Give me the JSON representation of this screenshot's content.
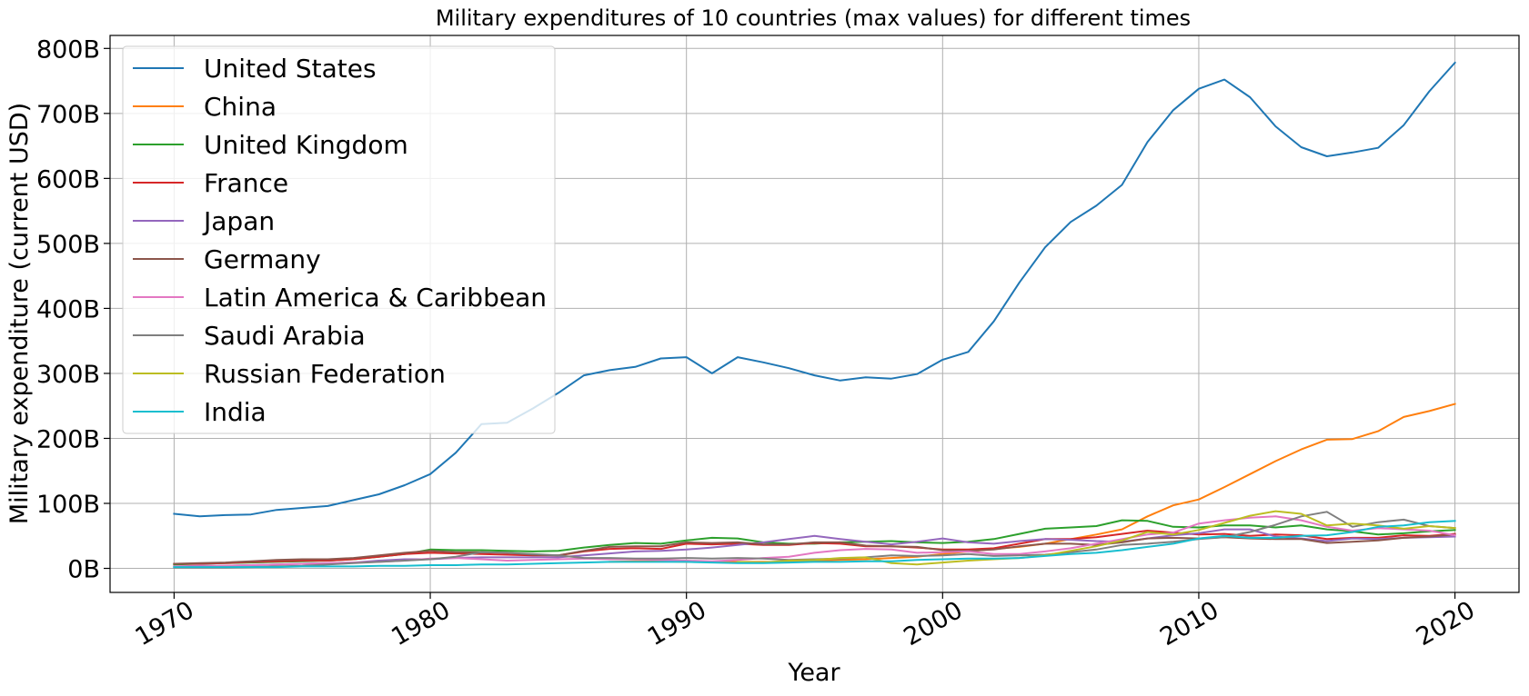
{
  "chart_data": {
    "type": "line",
    "title": "Military expenditures of 10 countries (max values) for different times",
    "xlabel": "Year",
    "ylabel": "Military expenditure (current USD)",
    "x": [
      1970,
      1971,
      1972,
      1973,
      1974,
      1975,
      1976,
      1977,
      1978,
      1979,
      1980,
      1981,
      1982,
      1983,
      1984,
      1985,
      1986,
      1987,
      1988,
      1989,
      1990,
      1991,
      1992,
      1993,
      1994,
      1995,
      1996,
      1997,
      1998,
      1999,
      2000,
      2001,
      2002,
      2003,
      2004,
      2005,
      2006,
      2007,
      2008,
      2009,
      2010,
      2011,
      2012,
      2013,
      2014,
      2015,
      2016,
      2017,
      2018,
      2019,
      2020
    ],
    "xlim": [
      1967.5,
      2022.5
    ],
    "ylim": [
      -37,
      820
    ],
    "xticks": [
      1970,
      1980,
      1990,
      2000,
      2010,
      2020
    ],
    "xtick_labels": [
      "1970",
      "1980",
      "1990",
      "2000",
      "2010",
      "2020"
    ],
    "yticks": [
      0,
      100,
      200,
      300,
      400,
      500,
      600,
      700,
      800
    ],
    "ytick_labels": [
      "0B",
      "100B",
      "200B",
      "300B",
      "400B",
      "500B",
      "600B",
      "700B",
      "800B"
    ],
    "grid": true,
    "legend_position": "top-left",
    "series": [
      {
        "name": "United States",
        "color": "#1f77b4",
        "values": [
          84,
          80,
          82,
          83,
          90,
          93,
          96,
          105,
          114,
          128,
          145,
          178,
          222,
          224,
          246,
          270,
          297,
          305,
          310,
          323,
          325,
          300,
          325,
          317,
          308,
          297,
          289,
          294,
          292,
          299,
          321,
          333,
          380,
          440,
          494,
          533,
          558,
          590,
          656,
          705,
          738,
          752,
          725,
          680,
          648,
          634,
          640,
          647,
          682,
          734,
          778
        ]
      },
      {
        "name": "China",
        "color": "#ff7f0e",
        "values": [
          null,
          null,
          null,
          null,
          null,
          null,
          null,
          null,
          null,
          null,
          null,
          null,
          null,
          null,
          null,
          null,
          null,
          10,
          11,
          11,
          10,
          10,
          10,
          10,
          10,
          12,
          13,
          14,
          16,
          18,
          22,
          26,
          30,
          33,
          38,
          45,
          52,
          60,
          80,
          97,
          106,
          125,
          145,
          165,
          183,
          198,
          199,
          211,
          233,
          242,
          253
        ]
      },
      {
        "name": "United Kingdom",
        "color": "#2ca02c",
        "values": [
          6,
          7,
          8,
          9,
          10,
          11,
          12,
          14,
          18,
          22,
          29,
          28,
          28,
          27,
          26,
          27,
          32,
          36,
          39,
          38,
          43,
          47,
          46,
          40,
          38,
          38,
          40,
          41,
          42,
          40,
          39,
          41,
          45,
          53,
          61,
          63,
          65,
          74,
          73,
          64,
          63,
          66,
          66,
          63,
          66,
          60,
          57,
          52,
          54,
          57,
          59
        ]
      },
      {
        "name": "France",
        "color": "#d62728",
        "values": [
          7,
          7,
          8,
          10,
          11,
          12,
          12,
          14,
          18,
          22,
          24,
          23,
          22,
          21,
          20,
          20,
          26,
          30,
          31,
          30,
          38,
          37,
          38,
          36,
          36,
          39,
          38,
          34,
          34,
          32,
          29,
          29,
          31,
          38,
          45,
          45,
          48,
          53,
          58,
          55,
          52,
          53,
          50,
          52,
          51,
          45,
          47,
          47,
          51,
          50,
          53
        ]
      },
      {
        "name": "Japan",
        "color": "#9467bd",
        "values": [
          3,
          4,
          4,
          5,
          6,
          7,
          8,
          9,
          12,
          14,
          14,
          16,
          17,
          17,
          17,
          17,
          20,
          23,
          26,
          27,
          29,
          32,
          36,
          40,
          45,
          50,
          45,
          41,
          37,
          41,
          46,
          40,
          38,
          42,
          45,
          44,
          42,
          41,
          46,
          51,
          54,
          60,
          60,
          49,
          46,
          42,
          46,
          45,
          47,
          48,
          49
        ]
      },
      {
        "name": "Germany",
        "color": "#8c564b",
        "values": [
          7,
          8,
          9,
          11,
          13,
          14,
          14,
          16,
          20,
          24,
          27,
          25,
          25,
          24,
          21,
          20,
          27,
          33,
          34,
          34,
          40,
          39,
          40,
          37,
          37,
          40,
          40,
          35,
          34,
          33,
          28,
          27,
          29,
          34,
          38,
          38,
          36,
          40,
          46,
          47,
          46,
          48,
          46,
          45,
          45,
          39,
          41,
          43,
          47,
          49,
          52
        ]
      },
      {
        "name": "Latin America & Caribbean",
        "color": "#e377c2",
        "values": [
          3,
          3,
          4,
          5,
          6,
          7,
          8,
          9,
          10,
          12,
          15,
          16,
          14,
          12,
          13,
          14,
          15,
          14,
          14,
          13,
          12,
          11,
          13,
          16,
          18,
          24,
          28,
          30,
          29,
          24,
          25,
          26,
          22,
          22,
          26,
          31,
          38,
          45,
          52,
          55,
          69,
          74,
          78,
          80,
          74,
          64,
          58,
          62,
          60,
          58,
          51
        ]
      },
      {
        "name": "Saudi Arabia",
        "color": "#7f7f7f",
        "values": [
          1,
          1,
          1,
          2,
          3,
          4,
          6,
          8,
          10,
          12,
          14,
          18,
          25,
          24,
          22,
          20,
          16,
          16,
          15,
          15,
          16,
          15,
          16,
          15,
          13,
          14,
          15,
          17,
          20,
          19,
          20,
          22,
          19,
          20,
          21,
          25,
          29,
          36,
          38,
          41,
          45,
          48,
          56,
          67,
          80,
          87,
          64,
          71,
          75,
          65,
          62
        ]
      },
      {
        "name": "Russian Federation",
        "color": "#bcbd22",
        "values": [
          null,
          null,
          null,
          null,
          null,
          null,
          null,
          null,
          null,
          null,
          null,
          null,
          null,
          null,
          null,
          null,
          null,
          null,
          null,
          null,
          null,
          null,
          10,
          9,
          12,
          13,
          16,
          17,
          8,
          6,
          9,
          12,
          14,
          16,
          20,
          27,
          34,
          43,
          56,
          52,
          59,
          70,
          81,
          88,
          84,
          66,
          69,
          66,
          61,
          65,
          62
        ]
      },
      {
        "name": "India",
        "color": "#17becf",
        "values": [
          2,
          2,
          2,
          2,
          2,
          3,
          3,
          3,
          4,
          4,
          5,
          5,
          6,
          6,
          7,
          8,
          9,
          10,
          10,
          10,
          10,
          9,
          8,
          8,
          9,
          10,
          10,
          11,
          11,
          13,
          14,
          15,
          15,
          16,
          19,
          22,
          24,
          28,
          33,
          38,
          46,
          50,
          47,
          47,
          50,
          51,
          56,
          64,
          66,
          71,
          73
        ]
      }
    ]
  }
}
